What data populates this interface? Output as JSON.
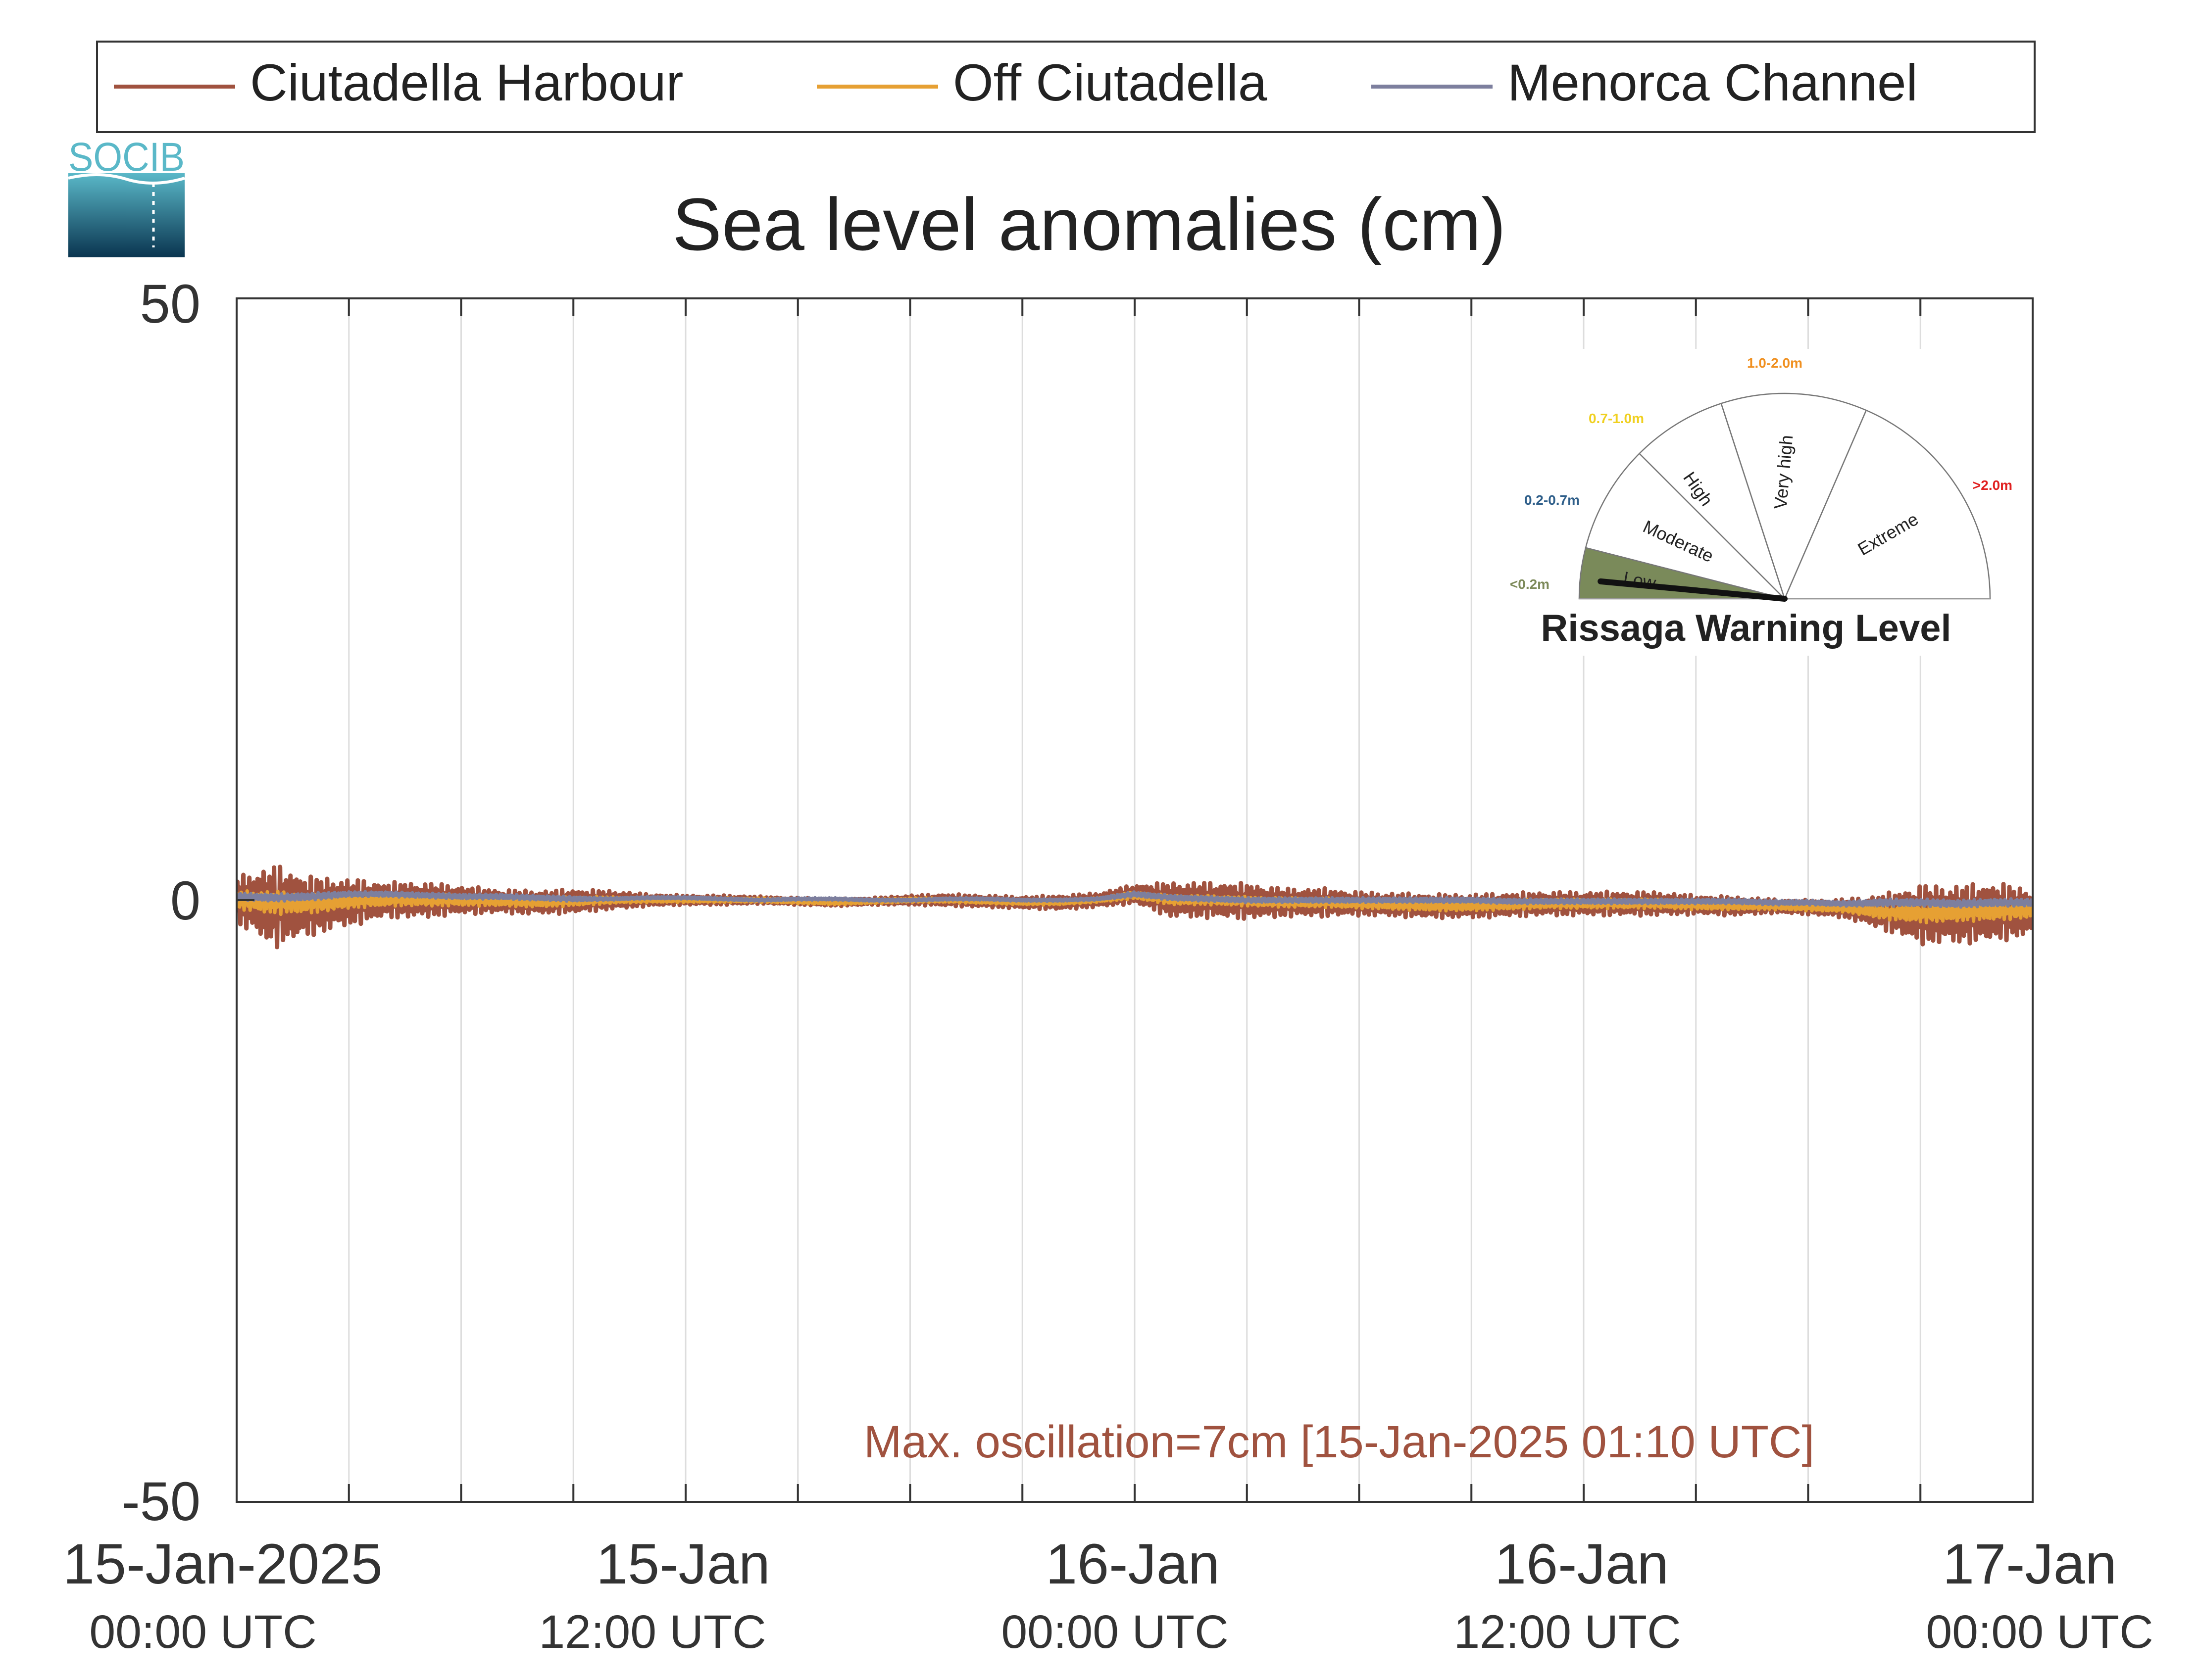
{
  "logo": {
    "text": "SOCIB"
  },
  "legend": {
    "items": [
      {
        "label": "Ciutadella Harbour",
        "color": "#a0523f"
      },
      {
        "label": "Off Ciutadella",
        "color": "#e6a033"
      },
      {
        "label": "Menorca Channel",
        "color": "#7d7f9e"
      }
    ]
  },
  "gauge": {
    "title": "Rissaga Warning Level",
    "needle_fraction": 0.03,
    "sectors": [
      {
        "name": "Low",
        "range": "<0.2m",
        "range_color": "#7d8a5a",
        "fill": "#7a8a5a"
      },
      {
        "name": "Moderate",
        "range": "0.2-0.7m",
        "range_color": "#2f5f8a",
        "fill": "#ffffff"
      },
      {
        "name": "High",
        "range": "0.7-1.0m",
        "range_color": "#f0d020",
        "fill": "#ffffff"
      },
      {
        "name": "Very high",
        "range": "1.0-2.0m",
        "range_color": "#f09020",
        "fill": "#ffffff"
      },
      {
        "name": "Extreme",
        "range": ">2.0m",
        "range_color": "#e02020",
        "fill": "#ffffff"
      }
    ]
  },
  "chart_data": {
    "type": "line",
    "title": "Sea level anomalies (cm)",
    "xlabel": "",
    "ylabel": "",
    "ylim": [
      -50,
      50
    ],
    "xlim_hours": [
      0,
      48
    ],
    "y_ticks": [
      {
        "value": 50,
        "label": "50"
      },
      {
        "value": 0,
        "label": "0"
      },
      {
        "value": -50,
        "label": "-50"
      }
    ],
    "x_ticks": [
      {
        "hours": 0,
        "date": "15-Jan-2025",
        "time": "00:00 UTC"
      },
      {
        "hours": 12,
        "date": "15-Jan",
        "time": "12:00 UTC"
      },
      {
        "hours": 24,
        "date": "16-Jan",
        "time": "00:00 UTC"
      },
      {
        "hours": 36,
        "date": "16-Jan",
        "time": "12:00 UTC"
      },
      {
        "hours": 48,
        "date": "17-Jan",
        "time": "00:00 UTC"
      }
    ],
    "x_gridlines_hours": [
      3,
      6,
      9,
      12,
      15,
      18,
      21,
      24,
      27,
      30,
      33,
      36,
      39,
      42,
      45
    ],
    "grid": true,
    "legend_position": "top",
    "annotation": {
      "text": "Max. oscillation=7cm [15-Jan-2025 01:10 UTC]",
      "color": "#a0523f"
    },
    "series": [
      {
        "name": "Ciutadella Harbour",
        "color": "#a0523f",
        "x": [
          0,
          1,
          2,
          3,
          4,
          5,
          6,
          7,
          8,
          9,
          10,
          11,
          12,
          13,
          14,
          15,
          16,
          17,
          18,
          19,
          20,
          21,
          22,
          23,
          24,
          25,
          26,
          27,
          28,
          29,
          30,
          31,
          32,
          33,
          34,
          35,
          36,
          37,
          38,
          39,
          40,
          41,
          42,
          43,
          44,
          45,
          46,
          47,
          48
        ],
        "amp": [
          2,
          3.5,
          2.5,
          2,
          1.5,
          1.5,
          1.2,
          1,
          1,
          1,
          0.8,
          0.5,
          0.4,
          0.4,
          0.3,
          0.3,
          0.3,
          0.3,
          0.4,
          0.5,
          0.5,
          0.5,
          0.6,
          0.6,
          0.8,
          1.5,
          1.5,
          1.5,
          1.2,
          1.2,
          1,
          1,
          1,
          1,
          1,
          1,
          1,
          1,
          1,
          0.8,
          0.8,
          0.6,
          0.6,
          0.8,
          1.5,
          2.5,
          2.5,
          2.5,
          2
        ],
        "mean": [
          0,
          -0.5,
          -0.5,
          -0.2,
          0,
          0,
          0,
          -0.1,
          -0.2,
          -0.1,
          0,
          0,
          0,
          0,
          0,
          -0.1,
          -0.2,
          -0.1,
          0,
          0,
          -0.1,
          -0.2,
          -0.2,
          0,
          0.5,
          0,
          0,
          -0.1,
          -0.2,
          -0.2,
          -0.3,
          -0.4,
          -0.5,
          -0.5,
          -0.4,
          -0.3,
          -0.3,
          -0.3,
          -0.3,
          -0.4,
          -0.5,
          -0.5,
          -0.6,
          -0.7,
          -1,
          -1.2,
          -1.2,
          -1,
          -1
        ]
      },
      {
        "name": "Off Ciutadella",
        "color": "#e6a033",
        "x": [
          0,
          1,
          2,
          3,
          4,
          5,
          6,
          7,
          8,
          9,
          10,
          11,
          12,
          13,
          14,
          15,
          16,
          17,
          18,
          19,
          20,
          21,
          22,
          23,
          24,
          25,
          26,
          27,
          28,
          29,
          30,
          31,
          32,
          33,
          34,
          35,
          36,
          37,
          38,
          39,
          40,
          41,
          42,
          43,
          44,
          45,
          46,
          47,
          48
        ],
        "amp": [
          0.8,
          1,
          0.8,
          0.6,
          0.5,
          0.5,
          0.5,
          0.4,
          0.4,
          0.4,
          0.3,
          0.2,
          0.2,
          0.2,
          0.2,
          0.2,
          0.2,
          0.2,
          0.2,
          0.2,
          0.2,
          0.2,
          0.2,
          0.2,
          0.3,
          0.4,
          0.4,
          0.4,
          0.4,
          0.4,
          0.4,
          0.4,
          0.4,
          0.4,
          0.4,
          0.4,
          0.4,
          0.4,
          0.4,
          0.4,
          0.3,
          0.3,
          0.3,
          0.3,
          0.6,
          0.8,
          0.8,
          0.8,
          0.6
        ],
        "mean": [
          0,
          -0.2,
          -0.3,
          -0.1,
          0,
          0,
          0,
          -0.1,
          -0.2,
          -0.1,
          0,
          0,
          0,
          0,
          0,
          -0.1,
          -0.2,
          -0.1,
          0,
          0,
          -0.1,
          -0.2,
          -0.2,
          0,
          0.4,
          0,
          0,
          -0.1,
          -0.2,
          -0.2,
          -0.3,
          -0.4,
          -0.5,
          -0.5,
          -0.4,
          -0.3,
          -0.3,
          -0.3,
          -0.3,
          -0.4,
          -0.5,
          -0.5,
          -0.6,
          -0.7,
          -1,
          -1.1,
          -1,
          -0.9,
          -0.9
        ]
      },
      {
        "name": "Menorca Channel",
        "color": "#7d7f9e",
        "x": [
          0,
          1,
          2,
          3,
          4,
          5,
          6,
          7,
          8,
          9,
          10,
          11,
          12,
          13,
          14,
          15,
          16,
          17,
          18,
          19,
          20,
          21,
          22,
          23,
          24,
          25,
          26,
          27,
          28,
          29,
          30,
          31,
          32,
          33,
          34,
          35,
          36,
          37,
          38,
          39,
          40,
          41,
          42,
          43,
          44,
          45,
          46,
          47,
          48
        ],
        "amp": [
          0.3,
          0.3,
          0.3,
          0.2,
          0.2,
          0.2,
          0.2,
          0.2,
          0.2,
          0.2,
          0.1,
          0.1,
          0.1,
          0.1,
          0.1,
          0.1,
          0.1,
          0.1,
          0.1,
          0.1,
          0.1,
          0.1,
          0.1,
          0.1,
          0.2,
          0.2,
          0.2,
          0.2,
          0.2,
          0.2,
          0.2,
          0.2,
          0.2,
          0.2,
          0.2,
          0.2,
          0.2,
          0.2,
          0.2,
          0.2,
          0.2,
          0.2,
          0.2,
          0.2,
          0.3,
          0.3,
          0.3,
          0.3,
          0.3
        ],
        "mean": [
          0.3,
          0.2,
          0.3,
          0.5,
          0.5,
          0.4,
          0.3,
          0.3,
          0.2,
          0.1,
          0.1,
          0.2,
          0.2,
          0.1,
          0,
          0.1,
          0.1,
          0,
          0,
          0.1,
          0.1,
          0,
          0,
          0.1,
          0.5,
          0.2,
          0.1,
          0,
          0,
          0,
          0,
          0,
          0,
          0,
          -0.1,
          -0.1,
          -0.1,
          -0.1,
          -0.1,
          -0.1,
          -0.1,
          -0.2,
          -0.2,
          -0.3,
          -0.2,
          -0.2,
          -0.3,
          -0.2,
          -0.2
        ]
      }
    ]
  }
}
